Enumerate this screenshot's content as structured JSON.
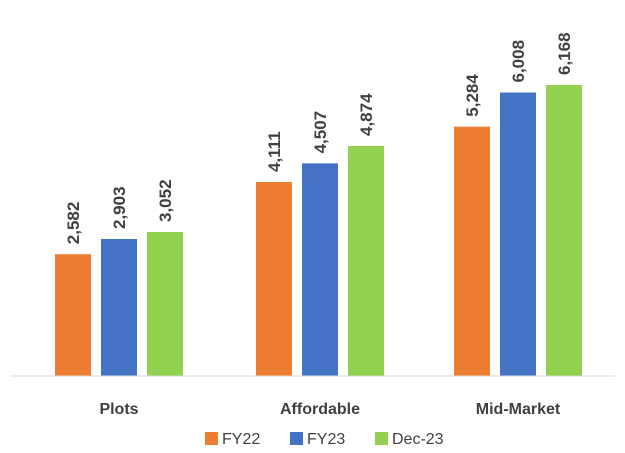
{
  "chart_data": {
    "type": "bar",
    "categories": [
      "Plots",
      "Affordable",
      "Mid-Market"
    ],
    "series": [
      {
        "name": "FY22",
        "values": [
          2582,
          4111,
          5284
        ],
        "labels": [
          "2,582",
          "4,111",
          "5,284"
        ],
        "color": "#ED7D31"
      },
      {
        "name": "FY23",
        "values": [
          2903,
          4507,
          6008
        ],
        "labels": [
          "2,903",
          "4,507",
          "6,008"
        ],
        "color": "#4472C4"
      },
      {
        "name": "Dec-23",
        "values": [
          3052,
          4874,
          6168
        ],
        "labels": [
          "3,052",
          "4,874",
          "6,168"
        ],
        "color": "#92D050"
      }
    ],
    "title": "",
    "xlabel": "",
    "ylabel": "",
    "ylim": [
      0,
      6600
    ],
    "grid": false,
    "legend": "bottom",
    "axis_line_color": "#D9D9D9"
  }
}
